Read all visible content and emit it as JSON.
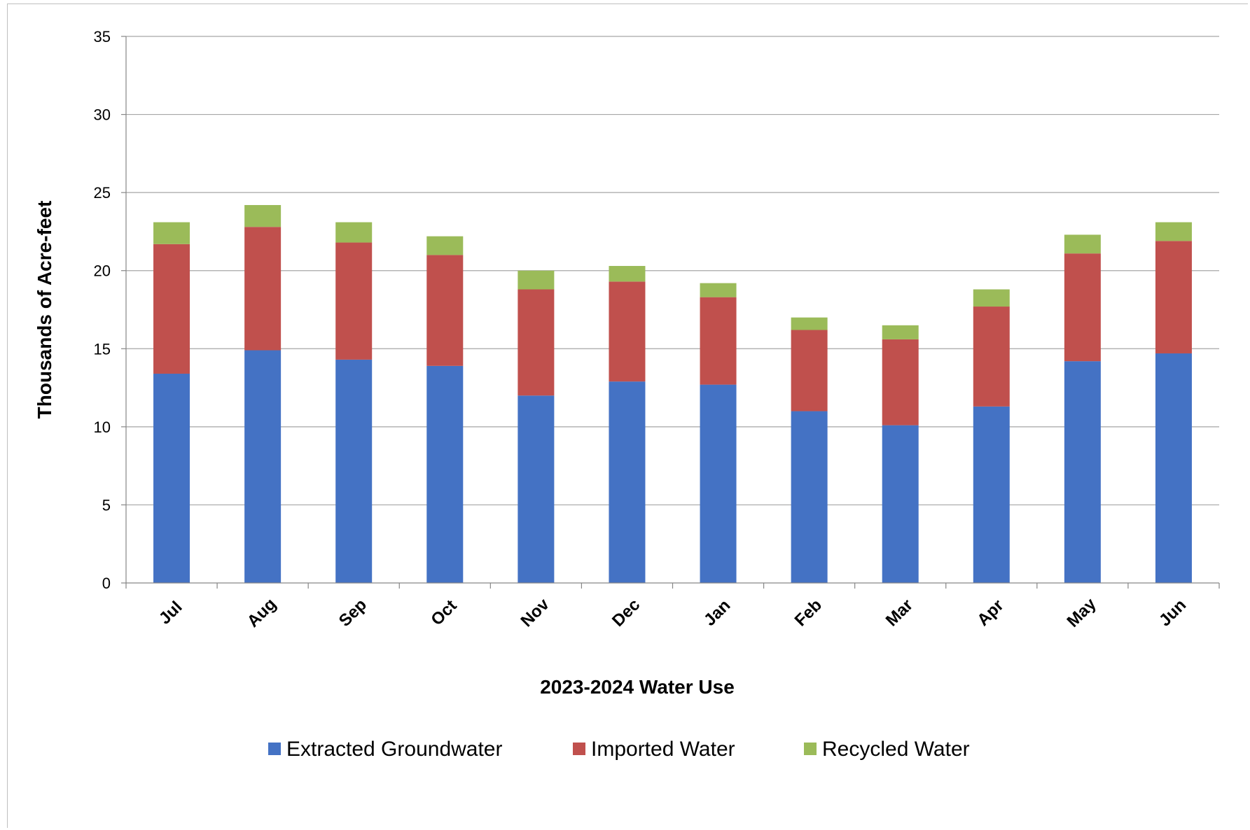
{
  "chart_data": {
    "type": "bar",
    "stacked": true,
    "categories": [
      "Jul",
      "Aug",
      "Sep",
      "Oct",
      "Nov",
      "Dec",
      "Jan",
      "Feb",
      "Mar",
      "Apr",
      "May",
      "Jun"
    ],
    "series": [
      {
        "name": "Extracted Groundwater",
        "color": "#4472c4",
        "values": [
          13.4,
          14.9,
          14.3,
          13.9,
          12.0,
          12.9,
          12.7,
          11.0,
          10.1,
          11.3,
          14.2,
          14.7
        ]
      },
      {
        "name": "Imported Water",
        "color": "#c0504d",
        "values": [
          8.3,
          7.9,
          7.5,
          7.1,
          6.8,
          6.4,
          5.6,
          5.2,
          5.5,
          6.4,
          6.9,
          7.2
        ]
      },
      {
        "name": "Recycled Water",
        "color": "#9bbb59",
        "values": [
          1.4,
          1.4,
          1.3,
          1.2,
          1.2,
          1.0,
          0.9,
          0.8,
          0.9,
          1.1,
          1.2,
          1.2
        ]
      }
    ],
    "title": "",
    "xlabel": "2023-2024 Water Use",
    "ylabel": "Thousands of Acre-feet",
    "ylim": [
      0,
      35
    ],
    "yticks": [
      0,
      5,
      10,
      15,
      20,
      25,
      30,
      35
    ],
    "grid": true,
    "legend": "bottom",
    "gridColor": "#a6a6a6"
  }
}
